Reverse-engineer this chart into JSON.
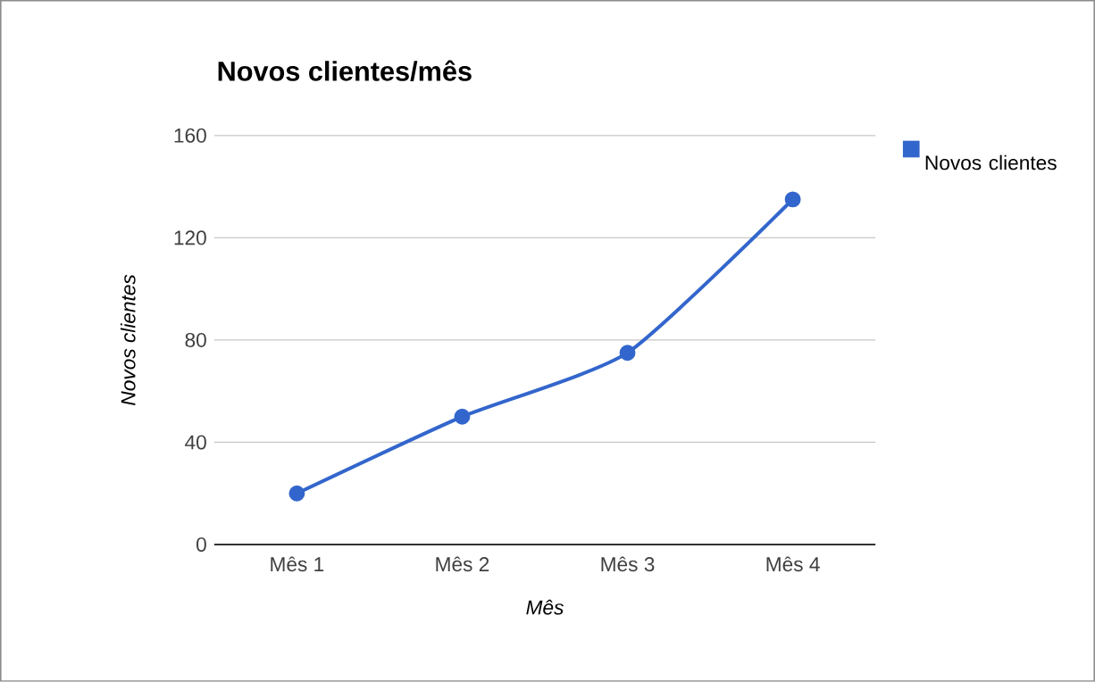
{
  "chart_data": {
    "type": "line",
    "title": "Novos clientes/mês",
    "xlabel": "Mês",
    "ylabel": "Novos clientes",
    "categories": [
      "Mês 1",
      "Mês 2",
      "Mês 3",
      "Mês 4"
    ],
    "series": [
      {
        "name": "Novos clientes",
        "color": "#3366cc",
        "values": [
          20,
          50,
          75,
          135
        ]
      }
    ],
    "ylim": [
      0,
      160
    ],
    "yticks": [
      0,
      40,
      80,
      120,
      160
    ],
    "grid": "y",
    "legend": "right",
    "marker": "circle",
    "line_style": "solid"
  }
}
